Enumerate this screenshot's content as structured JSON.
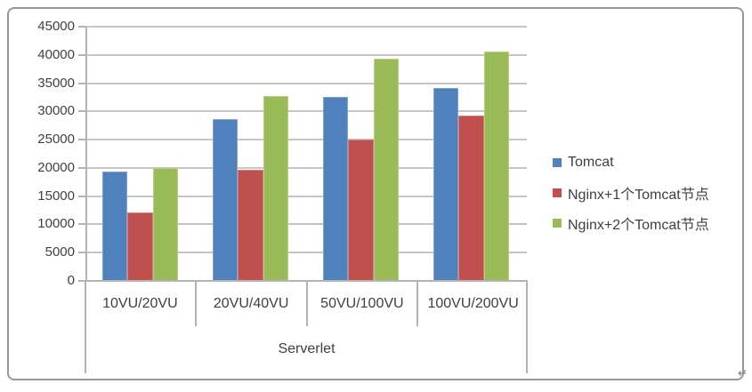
{
  "chart_data": {
    "type": "bar",
    "title": "",
    "categories": [
      "10VU/20VU",
      "20VU/40VU",
      "50VU/100VU",
      "100VU/200VU"
    ],
    "series": [
      {
        "name": "Tomcat",
        "color": "#4F81BD",
        "values": [
          19300,
          28600,
          32600,
          34200
        ]
      },
      {
        "name": "Nginx+1个Tomcat节点",
        "color": "#C0504D",
        "values": [
          12100,
          19600,
          25000,
          29200
        ]
      },
      {
        "name": "Nginx+2个Tomcat节点",
        "color": "#9BBB59",
        "values": [
          20000,
          32700,
          39300,
          40600
        ]
      }
    ],
    "xlabel": "Serverlet",
    "ylabel": "",
    "ylim": [
      0,
      45000
    ],
    "yticks": [
      0,
      5000,
      10000,
      15000,
      20000,
      25000,
      30000,
      35000,
      40000,
      45000
    ],
    "grid": true,
    "legend_position": "right"
  },
  "page": {
    "paragraph_mark": "↵"
  }
}
